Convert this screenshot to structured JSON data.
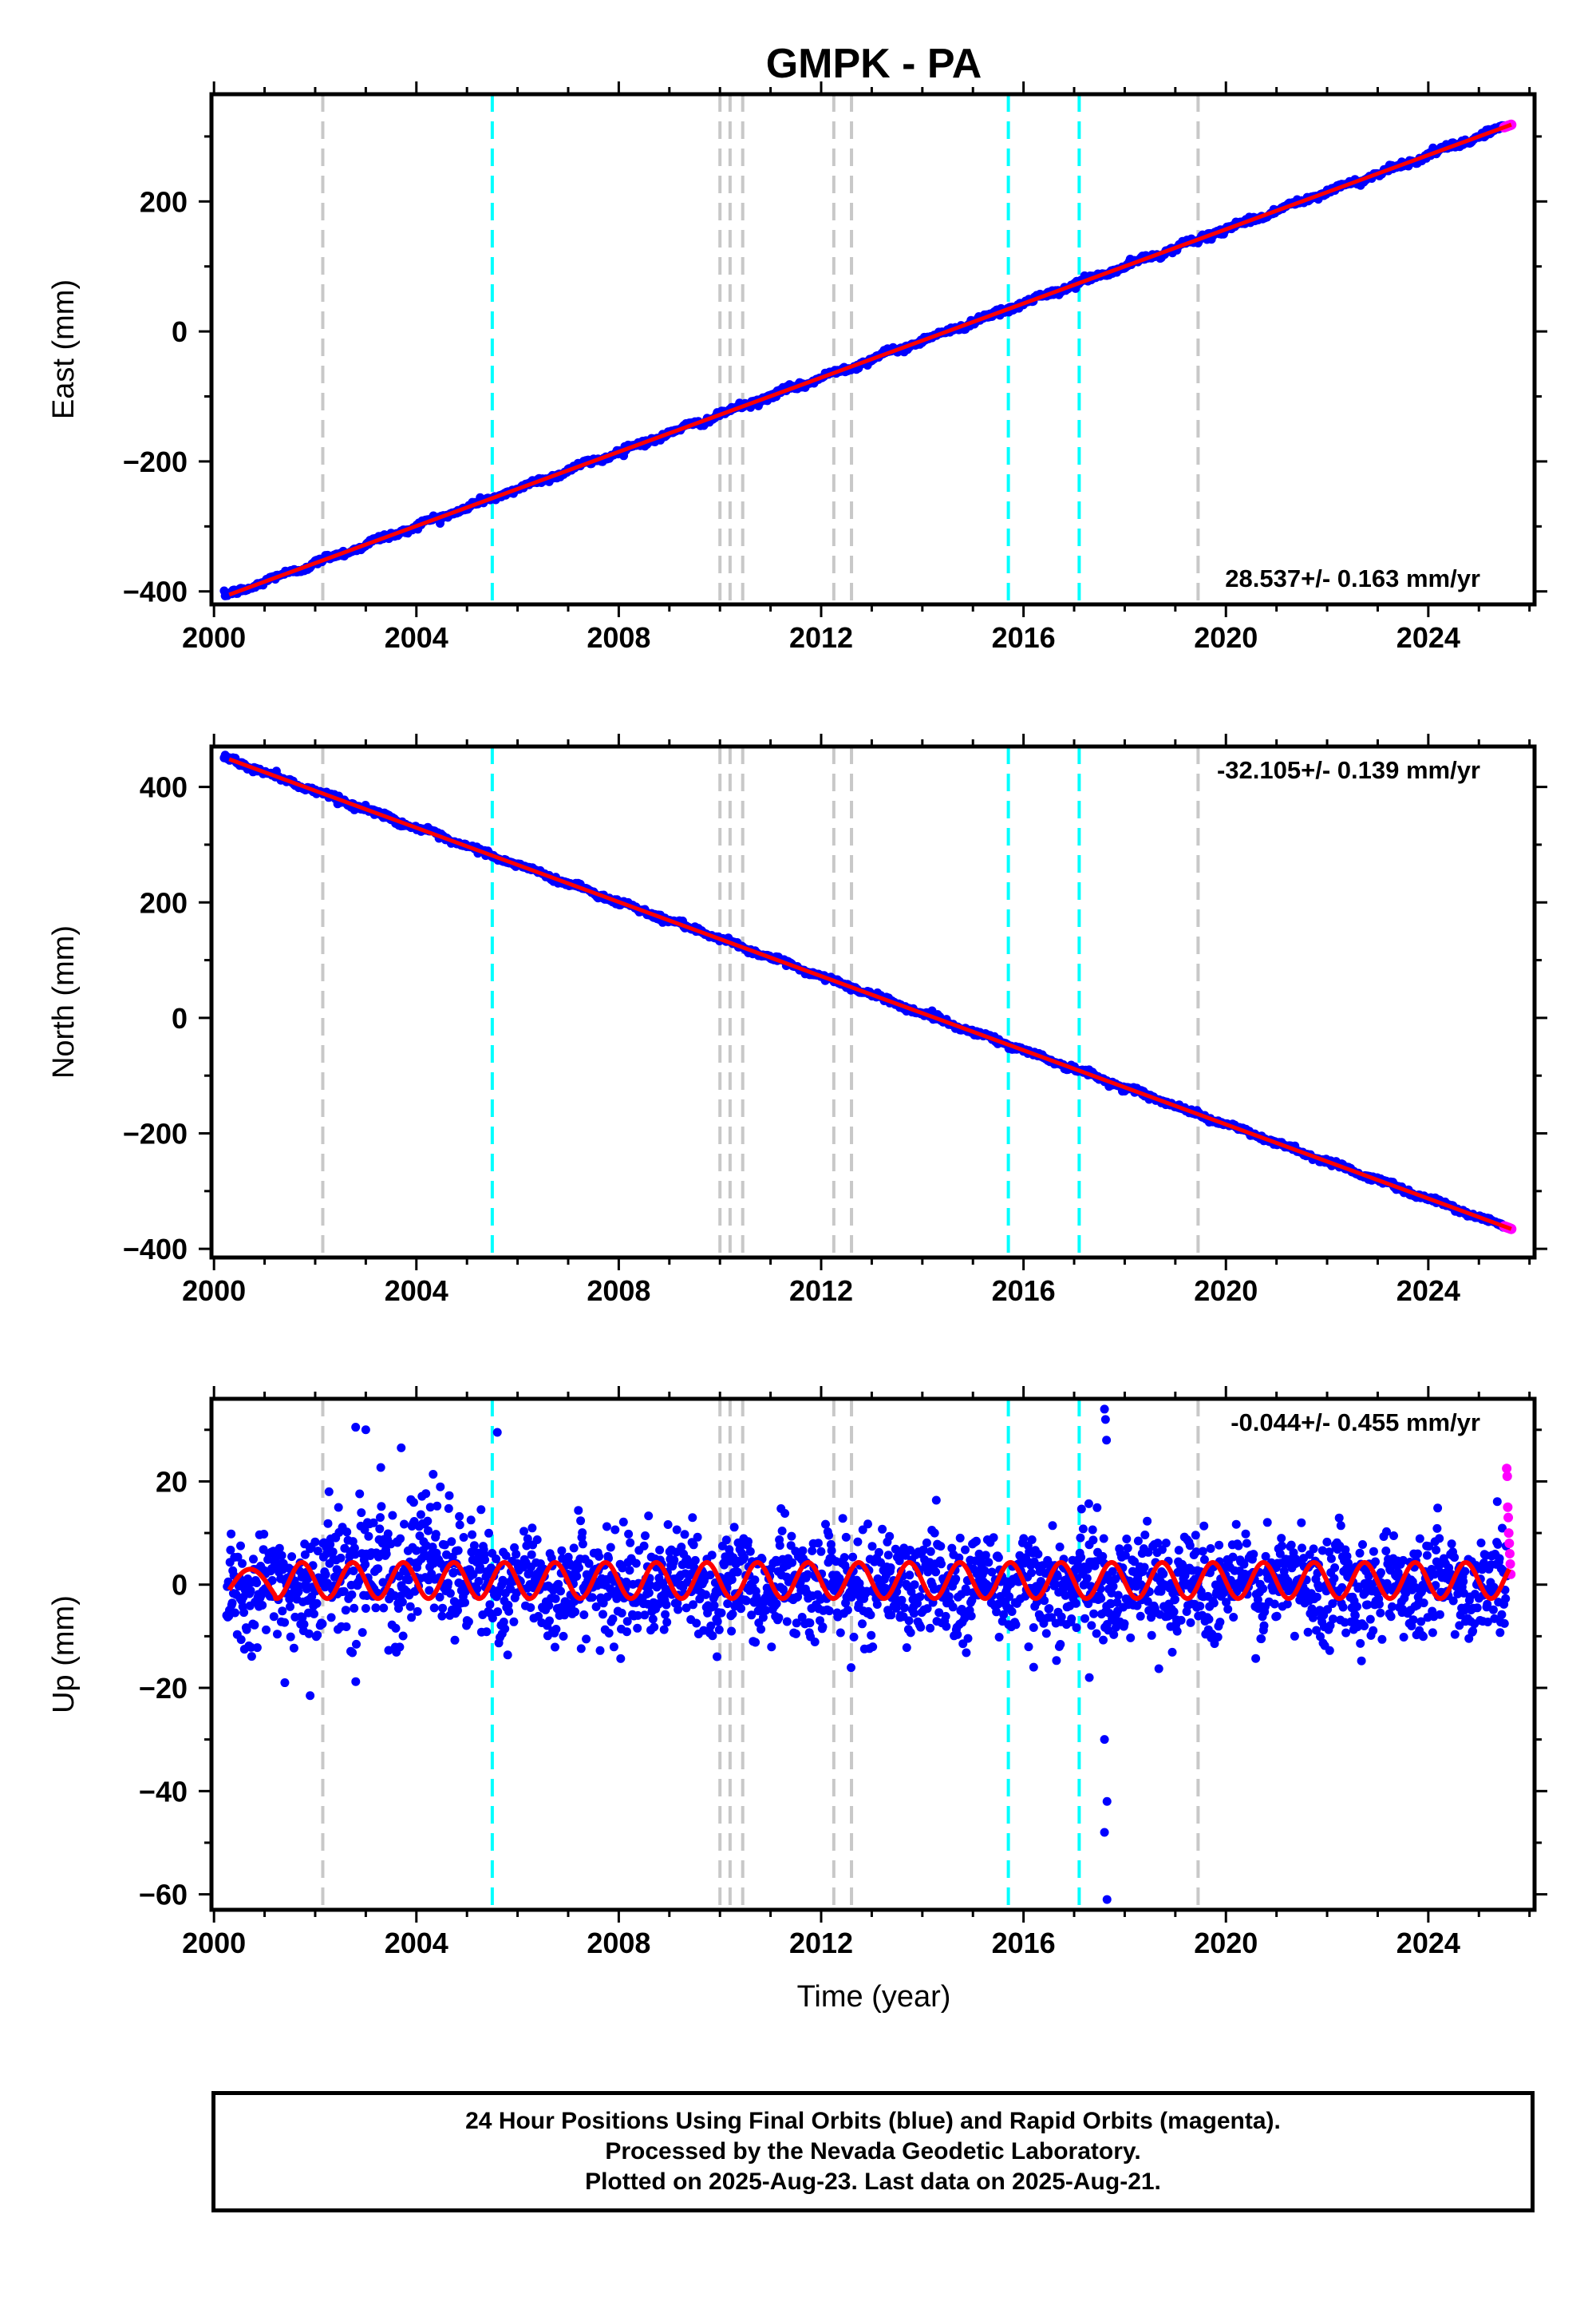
{
  "title": "GMPK - PA",
  "xlabel": "Time (year)",
  "footer": {
    "line1": "24 Hour Positions Using Final Orbits (blue) and Rapid Orbits (magenta).",
    "line2": "Processed by the Nevada Geodetic Laboratory.",
    "line3": "Plotted on 2025-Aug-23. Last data on 2025-Aug-21."
  },
  "colors": {
    "final": "#0000ff",
    "rapid": "#ff00ff",
    "model": "#ff0000",
    "equipment_change": "#c8c8c8",
    "earthquake": "#00ffff"
  },
  "chart_data": [
    {
      "type": "scatter",
      "panel": "east",
      "ylabel": "East (mm)",
      "rate": "28.537+/- 0.163 mm/yr",
      "xlim": [
        1999.95,
        2026.1
      ],
      "ylim": [
        -420,
        365
      ],
      "x_ticks": [
        2000,
        2004,
        2008,
        2012,
        2016,
        2020,
        2024
      ],
      "y_ticks": [
        -400,
        -200,
        0,
        200
      ],
      "line_model": {
        "x0": 2000.3,
        "y0": -405,
        "slope": 28.537,
        "x1": 2025.64
      },
      "final_orbit_range": {
        "x": [
          2000.2,
          2025.5
        ],
        "y": [
          -400,
          338
        ]
      },
      "rapid_orbit_range": {
        "x": [
          2025.5,
          2025.64
        ],
        "y": [
          338,
          345
        ]
      }
    },
    {
      "type": "scatter",
      "panel": "north",
      "ylabel": "North (mm)",
      "rate": "-32.105+/- 0.139 mm/yr",
      "xlim": [
        1999.95,
        2026.1
      ],
      "ylim": [
        -415,
        470
      ],
      "x_ticks": [
        2000,
        2004,
        2008,
        2012,
        2016,
        2020,
        2024
      ],
      "y_ticks": [
        -400,
        -200,
        0,
        200,
        400
      ],
      "line_model": {
        "x0": 2000.3,
        "y0": 448,
        "slope": -32.105,
        "x1": 2025.64
      },
      "final_orbit_range": {
        "x": [
          2000.2,
          2025.5
        ],
        "y": [
          448,
          -385
        ]
      },
      "rapid_orbit_range": {
        "x": [
          2025.5,
          2025.64
        ],
        "y": [
          -385,
          -392
        ]
      }
    },
    {
      "type": "scatter",
      "panel": "up",
      "ylabel": "Up (mm)",
      "rate": "-0.044+/- 0.455 mm/yr",
      "xlim": [
        1999.95,
        2026.1
      ],
      "ylim": [
        -63,
        36
      ],
      "x_ticks": [
        2000,
        2004,
        2008,
        2012,
        2016,
        2020,
        2024
      ],
      "y_ticks": [
        -60,
        -40,
        -20,
        0,
        20
      ],
      "seasonal_amplitude": 3.5,
      "final_orbit_scatter": 5,
      "outliers": [
        {
          "x": 2002.8,
          "y": 30.5
        },
        {
          "x": 2003.0,
          "y": 30
        },
        {
          "x": 2003.7,
          "y": 26.5
        },
        {
          "x": 2005.6,
          "y": 29.5
        },
        {
          "x": 2001.4,
          "y": -19
        },
        {
          "x": 2001.9,
          "y": -21.5
        },
        {
          "x": 2017.6,
          "y": 34
        },
        {
          "x": 2017.62,
          "y": 32
        },
        {
          "x": 2017.64,
          "y": 28
        },
        {
          "x": 2017.6,
          "y": -30
        },
        {
          "x": 2017.65,
          "y": -42
        },
        {
          "x": 2017.6,
          "y": -48
        },
        {
          "x": 2017.65,
          "y": -61
        },
        {
          "x": 2016.2,
          "y": -16
        },
        {
          "x": 2017.3,
          "y": -18
        }
      ],
      "rapid_points": [
        {
          "x": 2025.55,
          "y": 22.5
        },
        {
          "x": 2025.56,
          "y": 21
        },
        {
          "x": 2025.57,
          "y": 15
        },
        {
          "x": 2025.58,
          "y": 13
        },
        {
          "x": 2025.59,
          "y": 10
        },
        {
          "x": 2025.6,
          "y": 8
        },
        {
          "x": 2025.61,
          "y": 6
        },
        {
          "x": 2025.62,
          "y": 4
        },
        {
          "x": 2025.63,
          "y": 2
        }
      ]
    }
  ],
  "event_lines": {
    "equipment_change": [
      2002.15,
      2010.0,
      2010.2,
      2010.45,
      2012.25,
      2012.6,
      2019.45
    ],
    "earthquake": [
      2005.5,
      2015.7,
      2017.1
    ]
  }
}
